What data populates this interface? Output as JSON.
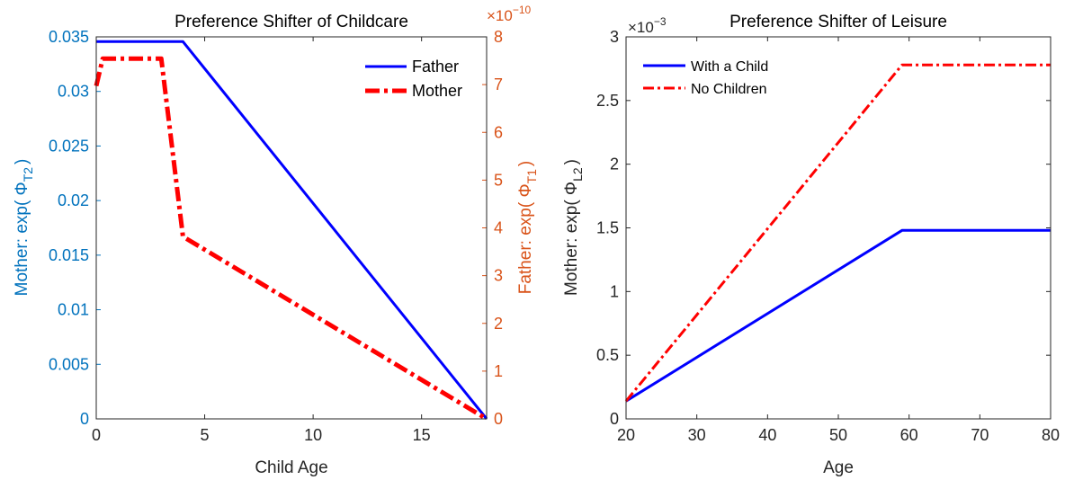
{
  "chart_data": [
    {
      "type": "line",
      "title": "Preference Shifter of Childcare",
      "xlabel": "Child Age",
      "xlim": [
        0,
        18
      ],
      "xticks": [
        "0",
        "5",
        "10",
        "15"
      ],
      "xtick_values": [
        0,
        5,
        10,
        15
      ],
      "ylabel_left": "Mother: exp( Φ",
      "ylabel_left_sub": "T2",
      "ylabel_left_close": ")",
      "ylim_left": [
        0,
        0.035
      ],
      "yticks_left": [
        "0",
        "0.005",
        "0.01",
        "0.015",
        "0.02",
        "0.025",
        "0.03",
        "0.035"
      ],
      "ytick_values_left": [
        0,
        0.005,
        0.01,
        0.015,
        0.02,
        0.025,
        0.03,
        0.035
      ],
      "ylabel_right": "Father: exp( Φ",
      "ylabel_right_sub": "T1",
      "ylabel_right_close": ")",
      "ylim_right": [
        0,
        8
      ],
      "yticks_right": [
        "0",
        "1",
        "2",
        "3",
        "4",
        "5",
        "6",
        "7",
        "8"
      ],
      "ytick_values_right": [
        0,
        1,
        2,
        3,
        4,
        5,
        6,
        7,
        8
      ],
      "right_exponent_base": "×10",
      "right_exponent_power": "−10",
      "left_axis_color": "#0072BD",
      "right_axis_color": "#D95319",
      "legend_position": "top-right",
      "series": [
        {
          "name": "Father",
          "axis": "right",
          "color": "#0000FF",
          "style": "solid",
          "x": [
            0,
            4,
            18
          ],
          "y": [
            7.9,
            7.9,
            0
          ]
        },
        {
          "name": "Mother",
          "axis": "left",
          "color": "#FF0000",
          "style": "dashdot-thick",
          "x": [
            0,
            0.3,
            3,
            4,
            18
          ],
          "y": [
            0.0305,
            0.033,
            0.033,
            0.0167,
            0
          ]
        }
      ]
    },
    {
      "type": "line",
      "title": "Preference Shifter of Leisure",
      "xlabel": "Age",
      "xlim": [
        20,
        80
      ],
      "xticks": [
        "20",
        "30",
        "40",
        "50",
        "60",
        "70",
        "80"
      ],
      "xtick_values": [
        20,
        30,
        40,
        50,
        60,
        70,
        80
      ],
      "ylabel_left": "Mother: exp( Φ",
      "ylabel_left_sub": "L2",
      "ylabel_left_close": ")",
      "ylim_left": [
        0,
        3
      ],
      "yticks_left": [
        "0",
        "0.5",
        "1",
        "1.5",
        "2",
        "2.5",
        "3"
      ],
      "ytick_values_left": [
        0,
        0.5,
        1,
        1.5,
        2,
        2.5,
        3
      ],
      "left_exponent_base": "×10",
      "left_exponent_power": "−3",
      "legend_position": "top-left",
      "series": [
        {
          "name": "With a Child",
          "axis": "left",
          "color": "#0000FF",
          "style": "solid",
          "x": [
            20,
            59,
            80
          ],
          "y": [
            0.14,
            1.48,
            1.48
          ]
        },
        {
          "name": "No Children",
          "axis": "left",
          "color": "#FF0000",
          "style": "dashdot",
          "x": [
            20,
            59,
            80
          ],
          "y": [
            0.14,
            2.78,
            2.78
          ]
        }
      ]
    }
  ]
}
